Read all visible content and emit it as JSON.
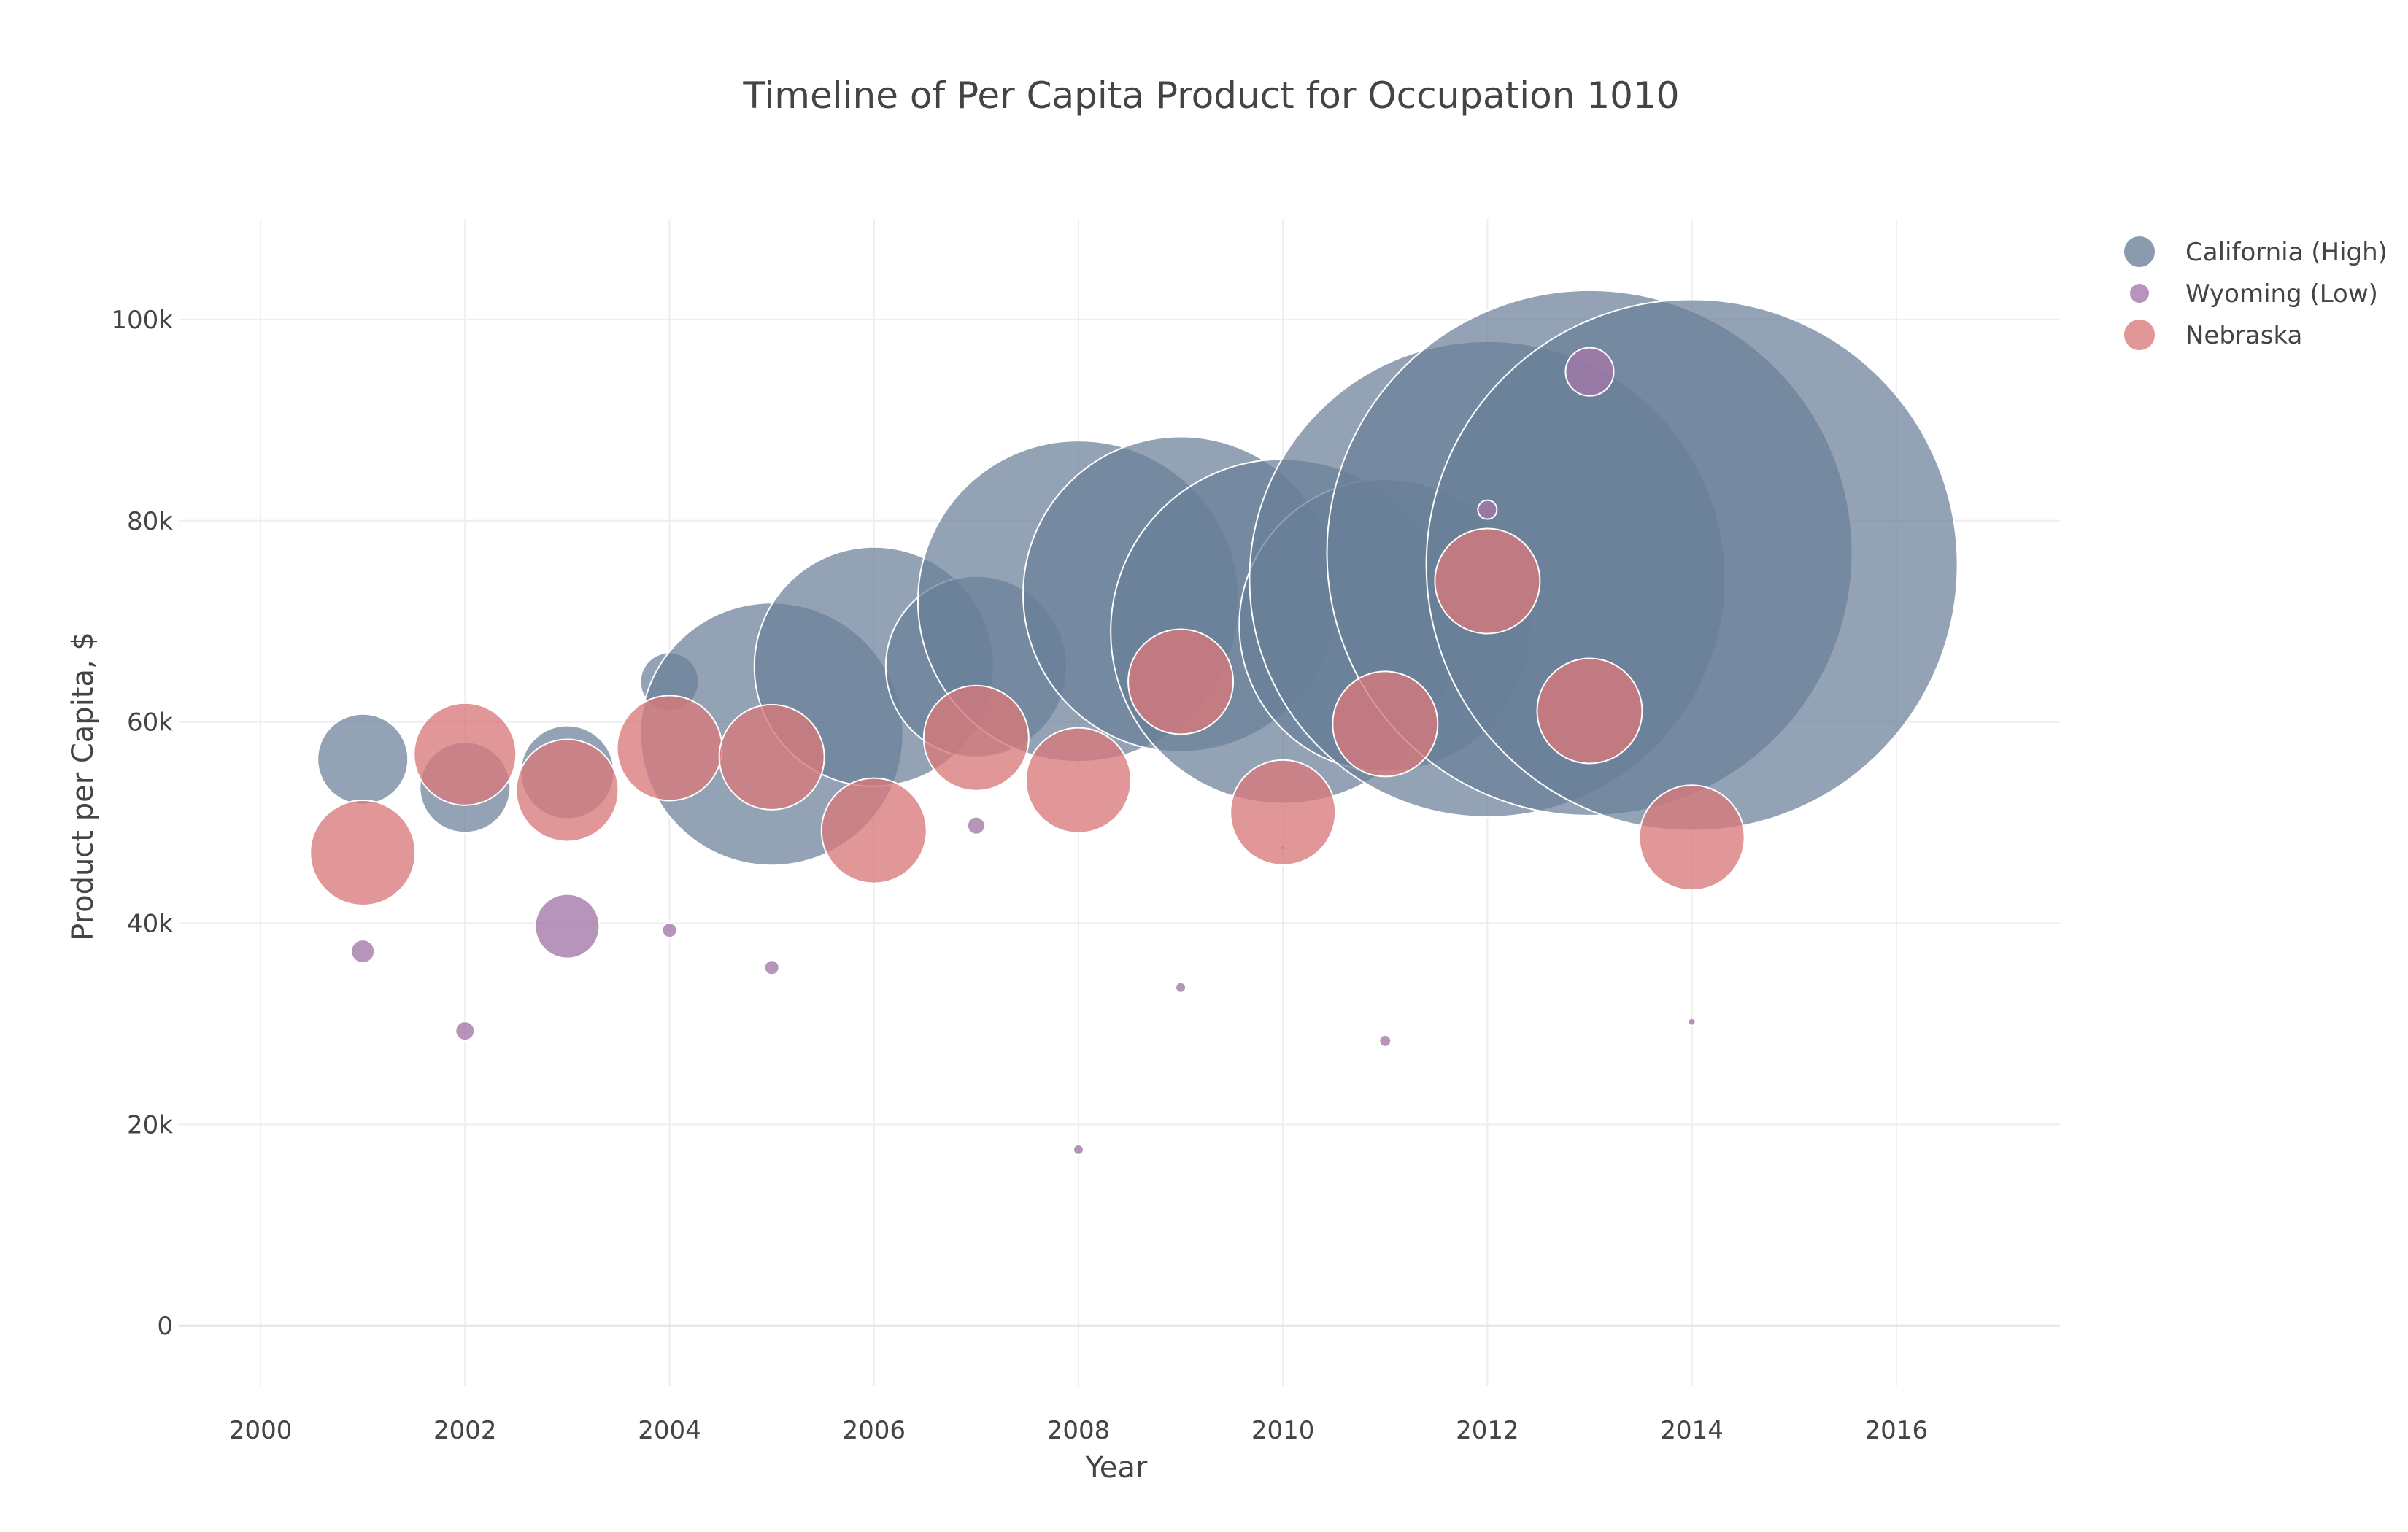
{
  "chart_data": {
    "type": "scatter",
    "title": "Timeline of Per Capita Product for Occupation 1010",
    "xlabel": "Year",
    "ylabel": "Product per Capita, $",
    "xlim": [
      1999.2,
      2017.6
    ],
    "ylim": [
      -6000,
      110000
    ],
    "x_ticks": [
      2000,
      2002,
      2004,
      2006,
      2008,
      2010,
      2012,
      2014,
      2016
    ],
    "y_ticks": [
      0,
      20000,
      40000,
      60000,
      80000,
      100000
    ],
    "y_tick_labels": [
      "0",
      "20k",
      "40k",
      "60k",
      "80k",
      "100k"
    ],
    "grid": true,
    "legend_position": "top-right",
    "series": [
      {
        "name": "California (High)",
        "color": "#6a7f99",
        "points": [
          {
            "x": 2001,
            "y": 56300,
            "size": 62
          },
          {
            "x": 2002,
            "y": 53500,
            "size": 62
          },
          {
            "x": 2003,
            "y": 55000,
            "size": 64
          },
          {
            "x": 2004,
            "y": 64000,
            "size": 40
          },
          {
            "x": 2005,
            "y": 58800,
            "size": 180
          },
          {
            "x": 2006,
            "y": 65500,
            "size": 164
          },
          {
            "x": 2007,
            "y": 65500,
            "size": 124
          },
          {
            "x": 2008,
            "y": 72000,
            "size": 220
          },
          {
            "x": 2009,
            "y": 72700,
            "size": 216
          },
          {
            "x": 2010,
            "y": 69000,
            "size": 236
          },
          {
            "x": 2011,
            "y": 69600,
            "size": 200
          },
          {
            "x": 2012,
            "y": 74200,
            "size": 326
          },
          {
            "x": 2013,
            "y": 76800,
            "size": 360
          },
          {
            "x": 2014,
            "y": 75600,
            "size": 364
          }
        ]
      },
      {
        "name": "Wyoming (Low)",
        "color": "#a377a8",
        "points": [
          {
            "x": 2001,
            "y": 37200,
            "size": 16
          },
          {
            "x": 2002,
            "y": 29300,
            "size": 13
          },
          {
            "x": 2003,
            "y": 39700,
            "size": 44
          },
          {
            "x": 2004,
            "y": 39300,
            "size": 10
          },
          {
            "x": 2005,
            "y": 35600,
            "size": 10
          },
          {
            "x": 2007,
            "y": 49700,
            "size": 12
          },
          {
            "x": 2008,
            "y": 17500,
            "size": 7
          },
          {
            "x": 2009,
            "y": 33600,
            "size": 7
          },
          {
            "x": 2010,
            "y": 47500,
            "size": 3
          },
          {
            "x": 2011,
            "y": 28300,
            "size": 8
          },
          {
            "x": 2012,
            "y": 81100,
            "size": 13
          },
          {
            "x": 2013,
            "y": 94800,
            "size": 33
          },
          {
            "x": 2014,
            "y": 30200,
            "size": 5
          }
        ]
      },
      {
        "name": "Nebraska",
        "color": "#d9787a",
        "points": [
          {
            "x": 2001,
            "y": 47000,
            "size": 72
          },
          {
            "x": 2002,
            "y": 56800,
            "size": 70
          },
          {
            "x": 2003,
            "y": 53200,
            "size": 70
          },
          {
            "x": 2004,
            "y": 57400,
            "size": 72
          },
          {
            "x": 2005,
            "y": 56500,
            "size": 72
          },
          {
            "x": 2006,
            "y": 49200,
            "size": 72
          },
          {
            "x": 2007,
            "y": 58400,
            "size": 72
          },
          {
            "x": 2008,
            "y": 54200,
            "size": 72
          },
          {
            "x": 2009,
            "y": 64000,
            "size": 72
          },
          {
            "x": 2010,
            "y": 51000,
            "size": 72
          },
          {
            "x": 2011,
            "y": 59800,
            "size": 72
          },
          {
            "x": 2012,
            "y": 74000,
            "size": 72
          },
          {
            "x": 2013,
            "y": 61100,
            "size": 72
          },
          {
            "x": 2014,
            "y": 48500,
            "size": 72
          }
        ]
      }
    ]
  }
}
